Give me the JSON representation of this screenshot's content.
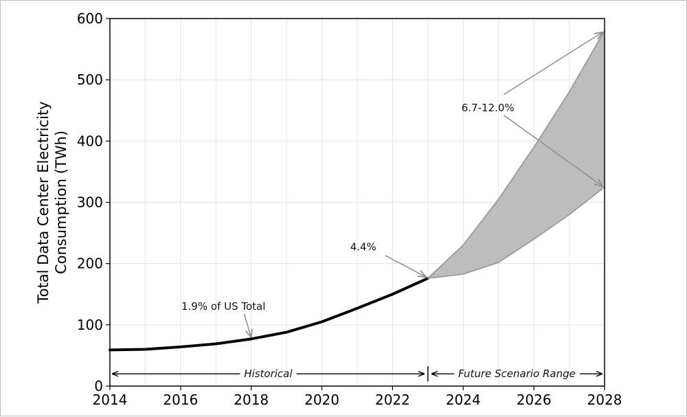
{
  "chart_data": {
    "type": "line",
    "title": "",
    "xlabel": "",
    "ylabel_lines": [
      "Total Data Center Electricity",
      "Consumption (TWh)"
    ],
    "xlim": [
      2014,
      2028
    ],
    "ylim": [
      0,
      600
    ],
    "x_ticks": [
      "2014",
      "2016",
      "2018",
      "2020",
      "2022",
      "2024",
      "2026",
      "2028"
    ],
    "y_ticks": [
      "0",
      "100",
      "200",
      "300",
      "400",
      "500",
      "600"
    ],
    "grid": true,
    "series": [
      {
        "kind": "historical-line",
        "color": "#000000",
        "x": [
          2014,
          2015,
          2016,
          2017,
          2018,
          2019,
          2020,
          2021,
          2022,
          2023
        ],
        "y": [
          59,
          60,
          64,
          69,
          77,
          88,
          105,
          127,
          150,
          176
        ]
      },
      {
        "kind": "scenario-high",
        "color": "#9e9e9e",
        "x": [
          2023,
          2024,
          2025,
          2026,
          2027,
          2028
        ],
        "y": [
          176,
          230,
          305,
          390,
          480,
          580
        ]
      },
      {
        "kind": "scenario-low",
        "color": "#9e9e9e",
        "x": [
          2023,
          2024,
          2025,
          2026,
          2027,
          2028
        ],
        "y": [
          176,
          183,
          202,
          240,
          280,
          325
        ]
      }
    ],
    "band_fill": "#bdbdbd",
    "divider_x": 2023,
    "annotations": [
      {
        "text": "1.9% of US Total",
        "text_at": [
          2014.0,
          130
        ],
        "arrow_from": [
          2017.8,
          118
        ],
        "arrow_to": [
          2018.0,
          79
        ]
      },
      {
        "text": "4.4%",
        "text_at": [
          2020.8,
          227
        ],
        "arrow_from": [
          2021.8,
          213
        ],
        "arrow_to": [
          2022.95,
          178
        ]
      },
      {
        "text": "6.7-12.0%",
        "text_at": [
          2023.95,
          454
        ],
        "arrow_from": [
          2025.15,
          476
        ],
        "arrow_to": [
          2027.95,
          578
        ],
        "arrow2_from": [
          2025.15,
          442
        ],
        "arrow2_to": [
          2027.95,
          326
        ]
      }
    ],
    "spans": [
      {
        "label": "Historical",
        "x": [
          2014,
          2023
        ],
        "y": 20
      },
      {
        "label": "Future Scenario Range",
        "x": [
          2023,
          2028
        ],
        "y": 20
      }
    ]
  }
}
